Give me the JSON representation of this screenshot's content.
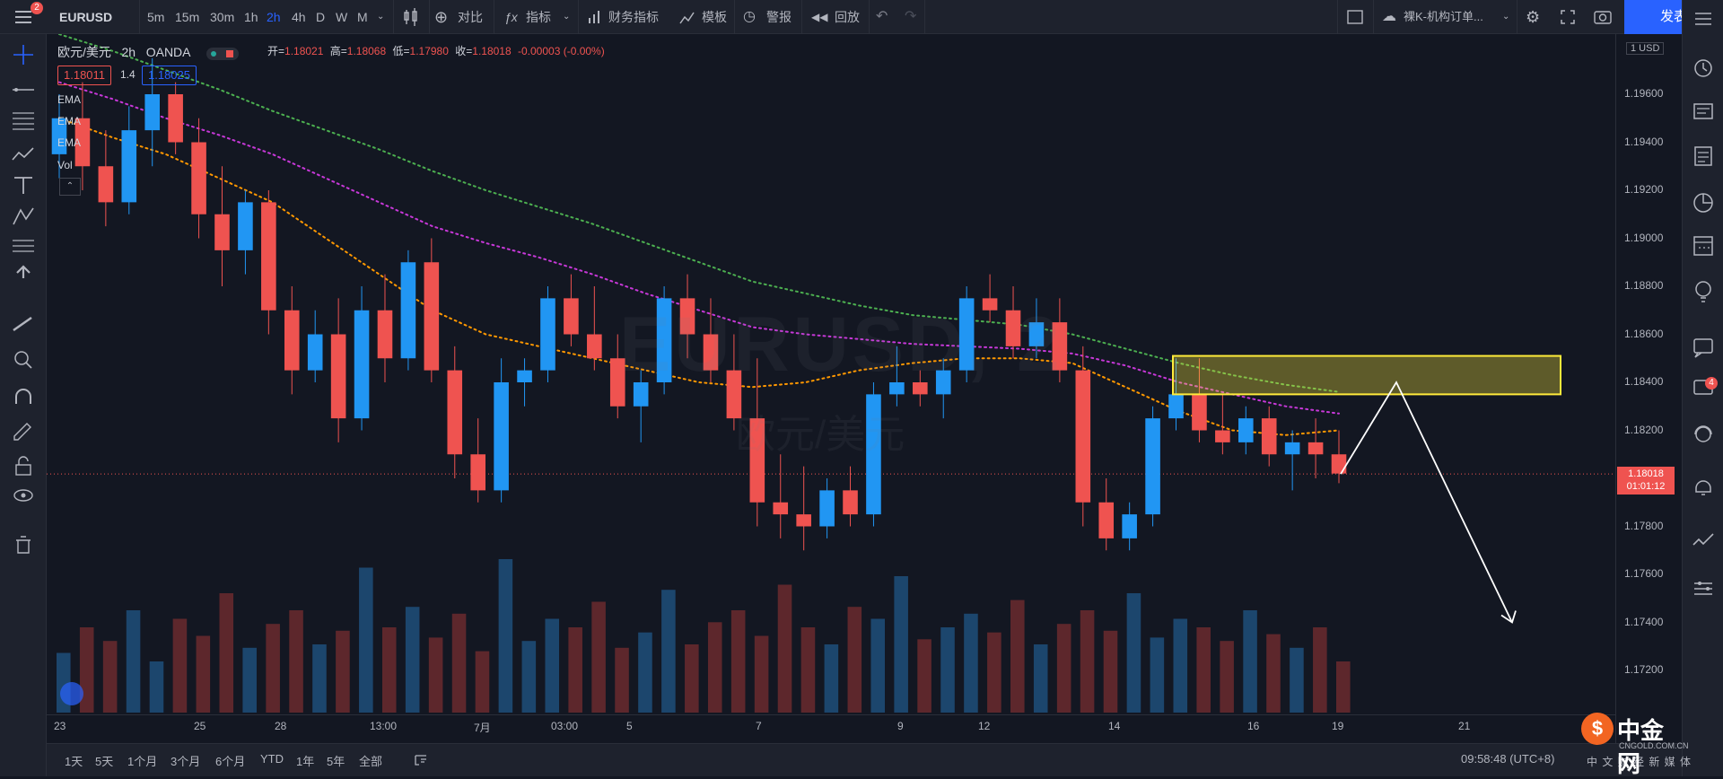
{
  "toolbar": {
    "menu_badge": "2",
    "symbol": "EURUSD",
    "intervals": [
      "5m",
      "15m",
      "30m",
      "1h",
      "2h",
      "4h",
      "D",
      "W",
      "M"
    ],
    "active_interval": "2h",
    "compare": "对比",
    "indicators": "指标",
    "financials": "财务指标",
    "templates": "模板",
    "alert": "警报",
    "replay": "回放",
    "layout_name": "裸K-机构订单...",
    "publish": "发表"
  },
  "legend": {
    "pair": "欧元/美元",
    "interval": "2h",
    "broker": "OANDA",
    "open_label": "开=",
    "open": "1.18021",
    "high_label": "高=",
    "high": "1.18068",
    "low_label": "低=",
    "low": "1.17980",
    "close_label": "收=",
    "close": "1.18018",
    "change": "-0.00003 (-0.00%)",
    "bid": "1.18011",
    "spread": "1.4",
    "ask": "1.18025",
    "indicators": [
      "EMA",
      "EMA",
      "EMA",
      "Vol"
    ]
  },
  "watermark": {
    "symbol": "EURUSD, 2",
    "name": "欧元/美元"
  },
  "price_axis": {
    "currency": "1 USD",
    "labels": [
      "1.19600",
      "1.19400",
      "1.19200",
      "1.19000",
      "1.18800",
      "1.18600",
      "1.18400",
      "1.18200",
      "1.17800",
      "1.17600",
      "1.17400",
      "1.17200"
    ],
    "current_price": "1.18018",
    "countdown": "01:01:12"
  },
  "time_axis": {
    "labels": [
      "23",
      "25",
      "28",
      "13:00",
      "7月",
      "03:00",
      "5",
      "7",
      "9",
      "12",
      "14",
      "16",
      "19",
      "21"
    ]
  },
  "bottom": {
    "ranges": [
      "1天",
      "5天",
      "1个月",
      "3个月",
      "6个月",
      "YTD",
      "1年",
      "5年",
      "全部"
    ],
    "clock": "09:58:48 (UTC+8)",
    "footer_text": "中 文 财 经 新 媒 体"
  },
  "logo": {
    "name": "中金网",
    "url": "CNGOLD.COM.CN"
  },
  "alerts_badge": "4",
  "colors": {
    "up": "#2196f3",
    "down": "#ef5350",
    "ema_fast": "#ff9800",
    "ema_mid": "#c738d8",
    "ema_slow": "#4caf50",
    "zone": "#ffeb3b"
  },
  "chart_data": {
    "type": "candlestick",
    "symbol": "EURUSD",
    "interval": "2h",
    "ylim": [
      1.171,
      1.198
    ],
    "candles_ohlc_sampled": [
      [
        1.1935,
        1.196,
        1.1925,
        1.195
      ],
      [
        1.195,
        1.1965,
        1.192,
        1.193
      ],
      [
        1.193,
        1.1945,
        1.1905,
        1.1915
      ],
      [
        1.1915,
        1.1955,
        1.191,
        1.1945
      ],
      [
        1.1945,
        1.1975,
        1.193,
        1.196
      ],
      [
        1.196,
        1.1965,
        1.1935,
        1.194
      ],
      [
        1.194,
        1.195,
        1.19,
        1.191
      ],
      [
        1.191,
        1.193,
        1.188,
        1.1895
      ],
      [
        1.1895,
        1.192,
        1.1885,
        1.1915
      ],
      [
        1.1915,
        1.192,
        1.186,
        1.187
      ],
      [
        1.187,
        1.188,
        1.1835,
        1.1845
      ],
      [
        1.1845,
        1.187,
        1.184,
        1.186
      ],
      [
        1.186,
        1.1875,
        1.1815,
        1.1825
      ],
      [
        1.1825,
        1.188,
        1.182,
        1.187
      ],
      [
        1.187,
        1.1885,
        1.184,
        1.185
      ],
      [
        1.185,
        1.1895,
        1.1845,
        1.189
      ],
      [
        1.189,
        1.19,
        1.184,
        1.1845
      ],
      [
        1.1845,
        1.1855,
        1.18,
        1.181
      ],
      [
        1.181,
        1.1825,
        1.179,
        1.1795
      ],
      [
        1.1795,
        1.185,
        1.179,
        1.184
      ],
      [
        1.184,
        1.185,
        1.183,
        1.1845
      ],
      [
        1.1845,
        1.188,
        1.184,
        1.1875
      ],
      [
        1.1875,
        1.1885,
        1.1855,
        1.186
      ],
      [
        1.186,
        1.188,
        1.1845,
        1.185
      ],
      [
        1.185,
        1.186,
        1.1825,
        1.183
      ],
      [
        1.183,
        1.1845,
        1.1815,
        1.184
      ],
      [
        1.184,
        1.188,
        1.1835,
        1.1875
      ],
      [
        1.1875,
        1.1885,
        1.185,
        1.186
      ],
      [
        1.186,
        1.1875,
        1.184,
        1.1845
      ],
      [
        1.1845,
        1.186,
        1.182,
        1.1825
      ],
      [
        1.1825,
        1.185,
        1.178,
        1.179
      ],
      [
        1.179,
        1.181,
        1.1775,
        1.1785
      ],
      [
        1.1785,
        1.1805,
        1.177,
        1.178
      ],
      [
        1.178,
        1.18,
        1.1775,
        1.1795
      ],
      [
        1.1795,
        1.1805,
        1.178,
        1.1785
      ],
      [
        1.1785,
        1.184,
        1.178,
        1.1835
      ],
      [
        1.1835,
        1.1855,
        1.183,
        1.184
      ],
      [
        1.184,
        1.1845,
        1.183,
        1.1835
      ],
      [
        1.1835,
        1.185,
        1.1825,
        1.1845
      ],
      [
        1.1845,
        1.188,
        1.184,
        1.1875
      ],
      [
        1.1875,
        1.1885,
        1.1865,
        1.187
      ],
      [
        1.187,
        1.188,
        1.185,
        1.1855
      ],
      [
        1.1855,
        1.1875,
        1.185,
        1.1865
      ],
      [
        1.1865,
        1.1875,
        1.184,
        1.1845
      ],
      [
        1.1845,
        1.1855,
        1.178,
        1.179
      ],
      [
        1.179,
        1.18,
        1.177,
        1.1775
      ],
      [
        1.1775,
        1.179,
        1.177,
        1.1785
      ],
      [
        1.1785,
        1.183,
        1.178,
        1.1825
      ],
      [
        1.1825,
        1.185,
        1.182,
        1.1835
      ],
      [
        1.1835,
        1.185,
        1.1815,
        1.182
      ],
      [
        1.182,
        1.1835,
        1.181,
        1.1815
      ],
      [
        1.1815,
        1.183,
        1.181,
        1.1825
      ],
      [
        1.1825,
        1.183,
        1.1805,
        1.181
      ],
      [
        1.181,
        1.182,
        1.1795,
        1.1815
      ],
      [
        1.1815,
        1.1825,
        1.18,
        1.181
      ],
      [
        1.181,
        1.182,
        1.1798,
        1.1802
      ]
    ],
    "ema_fast": [
      1.195,
      1.1942,
      1.1935,
      1.1925,
      1.1915,
      1.19,
      1.1885,
      1.187,
      1.186,
      1.1855,
      1.185,
      1.1845,
      1.184,
      1.1838,
      1.184,
      1.1845,
      1.1848,
      1.185,
      1.185,
      1.1848,
      1.1838,
      1.1828,
      1.182,
      1.1818,
      1.182
    ],
    "ema_mid": [
      1.1965,
      1.1958,
      1.195,
      1.1943,
      1.1935,
      1.1925,
      1.1915,
      1.1905,
      1.1898,
      1.1892,
      1.1885,
      1.1877,
      1.187,
      1.1863,
      1.186,
      1.1858,
      1.1856,
      1.1855,
      1.1854,
      1.1852,
      1.1847,
      1.184,
      1.1835,
      1.183,
      1.1827
    ],
    "ema_slow": [
      1.1985,
      1.1978,
      1.197,
      1.1962,
      1.1953,
      1.1945,
      1.1937,
      1.1928,
      1.192,
      1.1913,
      1.1906,
      1.1898,
      1.189,
      1.1882,
      1.1877,
      1.1872,
      1.1868,
      1.1866,
      1.1864,
      1.186,
      1.1854,
      1.1848,
      1.1843,
      1.1839,
      1.1836
    ],
    "volume_relative": [
      0.35,
      0.5,
      0.42,
      0.6,
      0.3,
      0.55,
      0.45,
      0.7,
      0.38,
      0.52,
      0.6,
      0.4,
      0.48,
      0.85,
      0.5,
      0.62,
      0.44,
      0.58,
      0.36,
      0.9,
      0.42,
      0.55,
      0.5,
      0.65,
      0.38,
      0.47,
      0.72,
      0.4,
      0.53,
      0.6,
      0.45,
      0.75,
      0.5,
      0.4,
      0.62,
      0.55,
      0.8,
      0.43,
      0.5,
      0.58,
      0.47,
      0.66,
      0.4,
      0.52,
      0.6,
      0.48,
      0.7,
      0.44,
      0.55,
      0.5,
      0.42,
      0.6,
      0.46,
      0.38,
      0.5,
      0.3
    ],
    "supply_zone": {
      "price_low": 1.1835,
      "price_high": 1.1851
    },
    "projection_arrow": {
      "from": 1.18018,
      "peak": 1.184,
      "to": 1.174
    }
  }
}
